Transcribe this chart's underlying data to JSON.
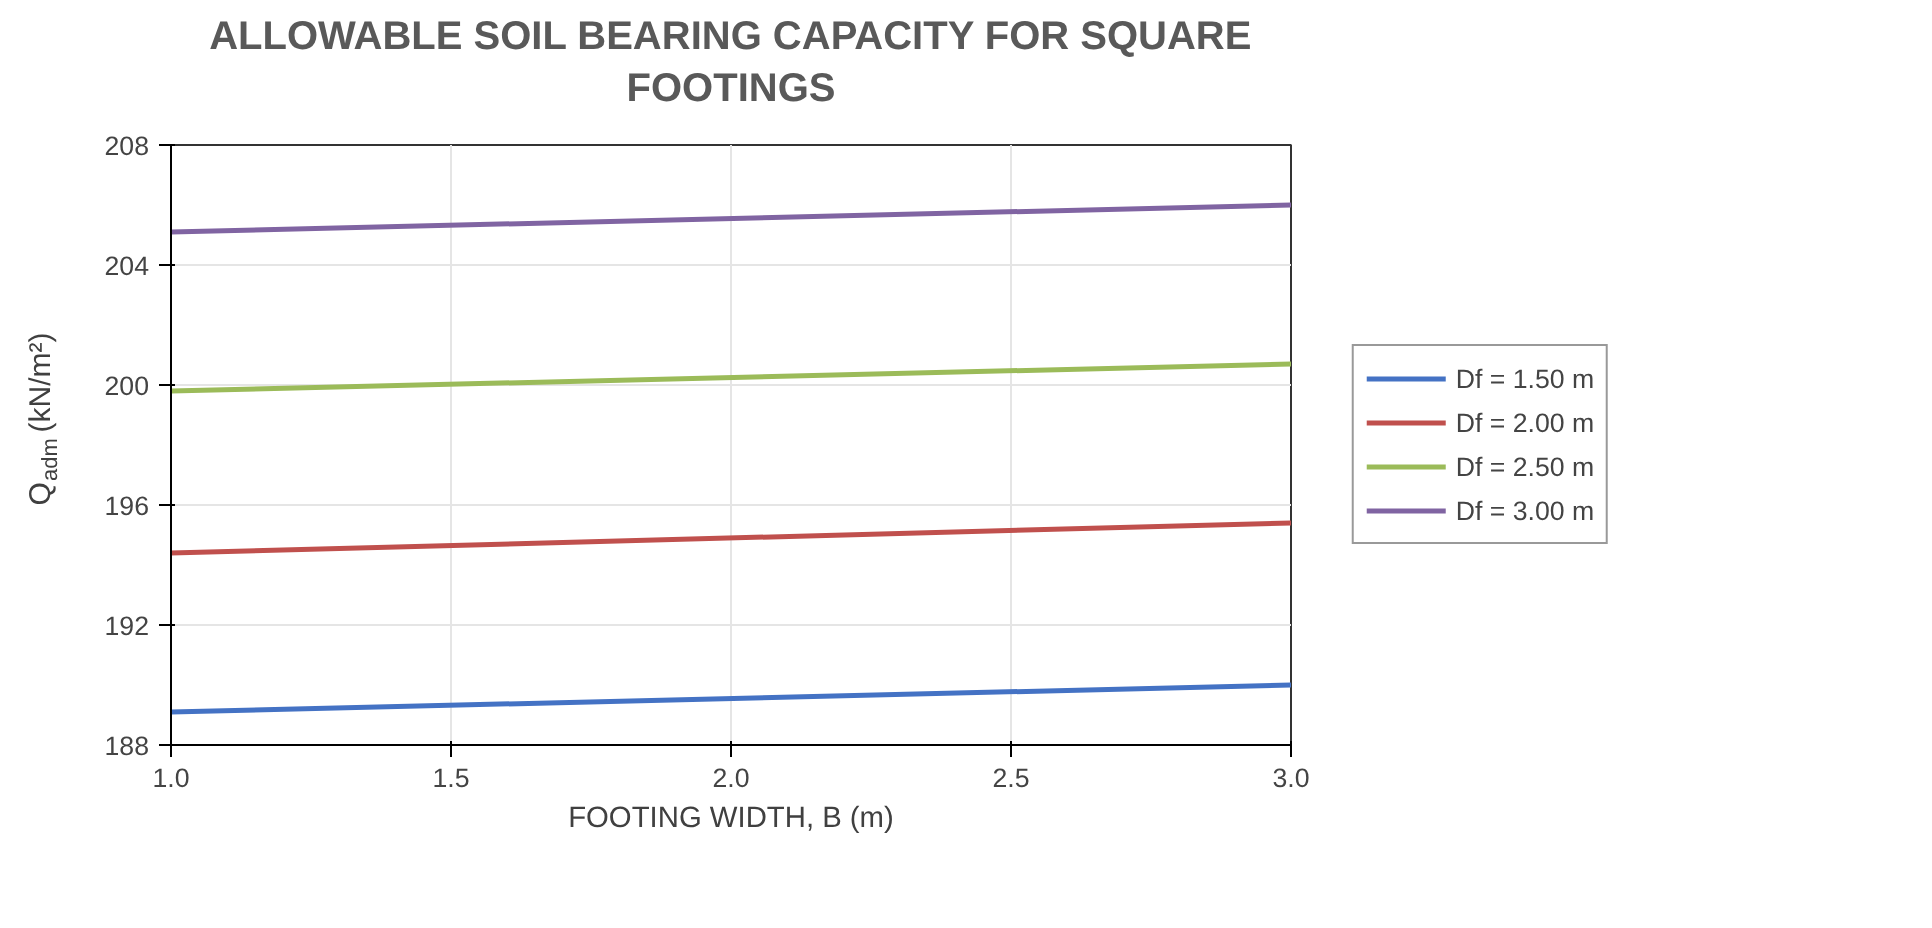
{
  "chart_data": {
    "type": "line",
    "title": "ALLOWABLE SOIL BEARING CAPACITY FOR SQUARE\nFOOTINGS",
    "xlabel": "FOOTING WIDTH, B (m)",
    "ylabel": "Q$_{adm}$ (kN/m²)",
    "x": [
      1.0,
      3.0
    ],
    "series": [
      {
        "name": "Df = 1.50 m",
        "color": "#4472c4",
        "values": [
          189.1,
          190.0
        ]
      },
      {
        "name": "Df = 2.00 m",
        "color": "#c0504d",
        "values": [
          194.4,
          195.4
        ]
      },
      {
        "name": "Df = 2.50 m",
        "color": "#9bbb59",
        "values": [
          199.8,
          200.7
        ]
      },
      {
        "name": "Df = 3.00 m",
        "color": "#8064a2",
        "values": [
          205.1,
          206.0
        ]
      }
    ],
    "xlim": [
      1.0,
      3.0
    ],
    "ylim": [
      188,
      208
    ],
    "xticks": [
      {
        "value": 1.0,
        "label": "1.0"
      },
      {
        "value": 1.5,
        "label": "1.5"
      },
      {
        "value": 2.0,
        "label": "2.0"
      },
      {
        "value": 2.5,
        "label": "2.5"
      },
      {
        "value": 3.0,
        "label": "3.0"
      }
    ],
    "yticks": [
      188,
      192,
      196,
      200,
      204,
      208
    ],
    "grid": true,
    "legend": "right",
    "marker": "none",
    "line_style": "solid"
  }
}
